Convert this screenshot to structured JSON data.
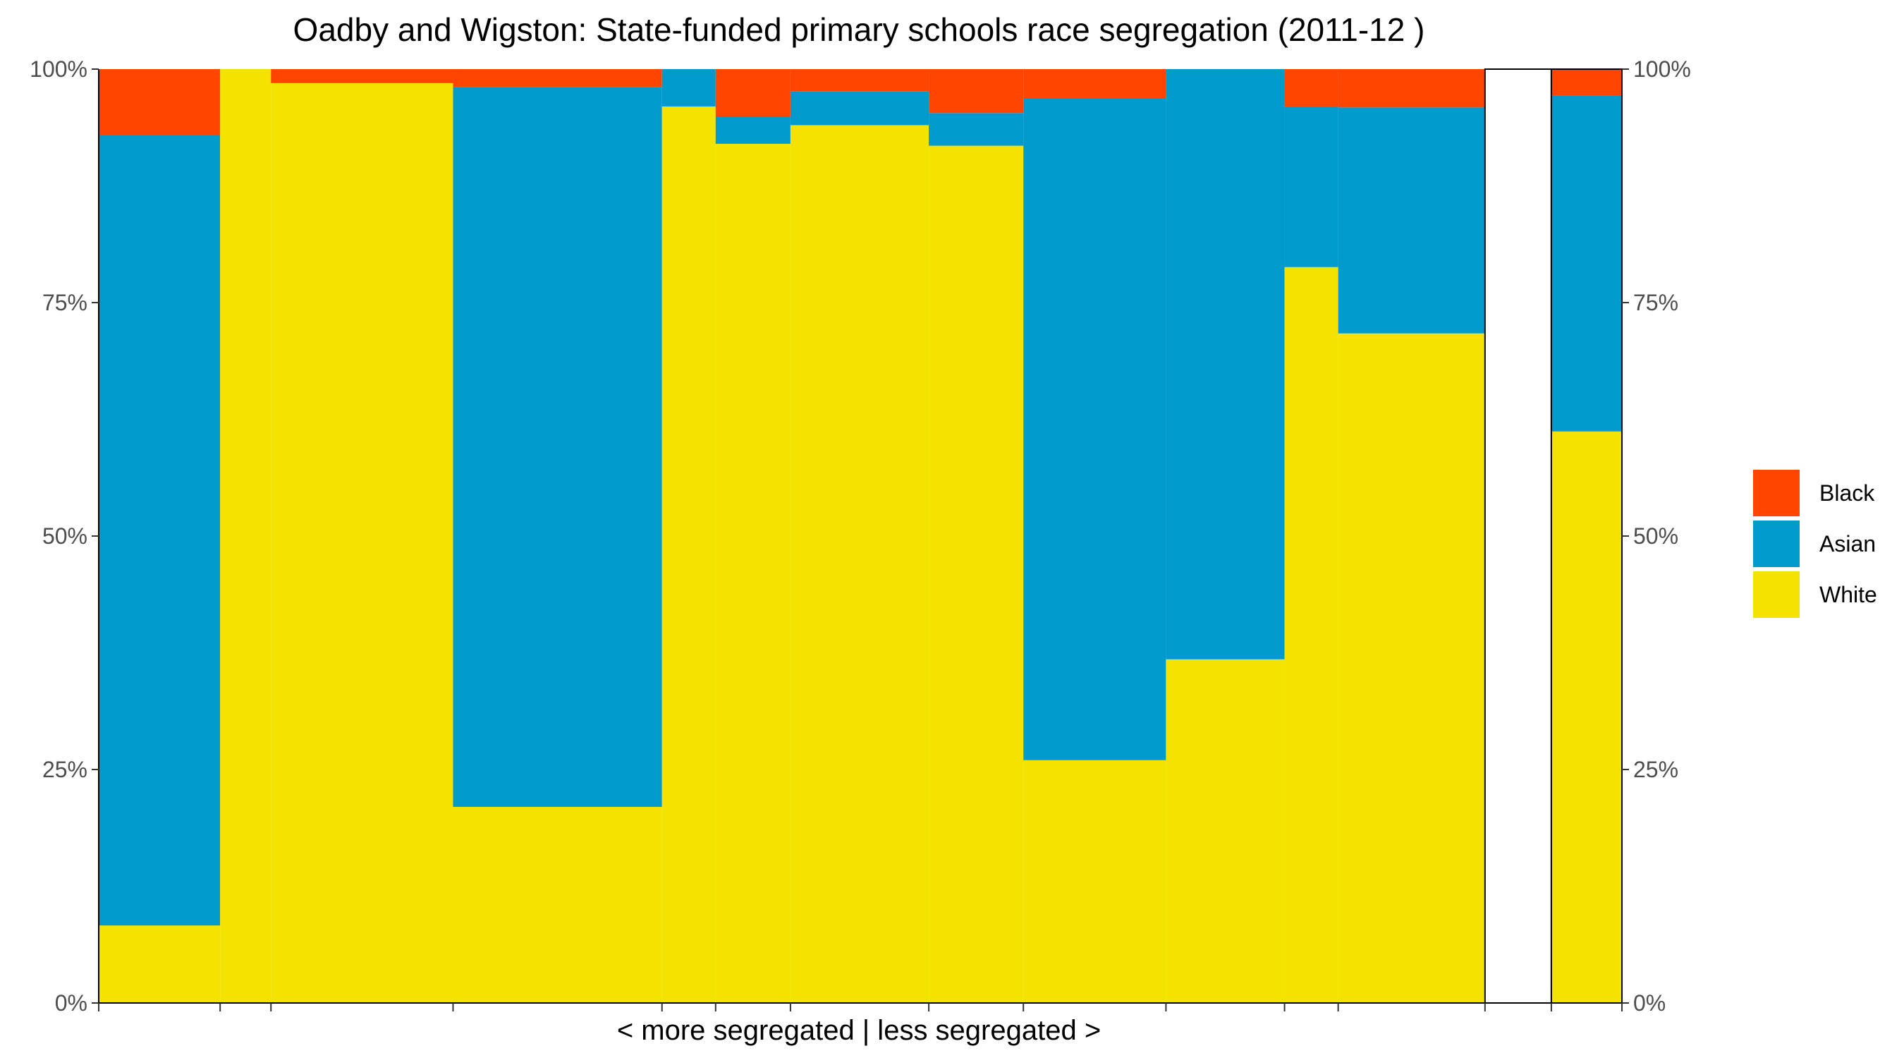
{
  "chart_data": {
    "type": "bar",
    "stacked": true,
    "variable_width": true,
    "title": "Oadby and Wigston: State-funded primary schools race segregation (2011-12 )",
    "xlabel": "< more segregated | less segregated >",
    "ylabel": "",
    "ylim": [
      0,
      1
    ],
    "y_ticks": [
      "0%",
      "25%",
      "50%",
      "75%",
      "100%"
    ],
    "grid": false,
    "legend_position": "right",
    "colors": {
      "Black": "#FF4500",
      "Asian": "#009ACD",
      "White": "#F4E300"
    },
    "legend": [
      {
        "name": "Black",
        "color": "#FF4500"
      },
      {
        "name": "Asian",
        "color": "#009ACD"
      },
      {
        "name": "White",
        "color": "#F4E300"
      }
    ],
    "series": [
      {
        "name": "White",
        "values": [
          0.083,
          1.0,
          0.985,
          0.21,
          0.96,
          0.92,
          0.94,
          0.918,
          0.26,
          0.368,
          0.788,
          0.717,
          null,
          0.612
        ]
      },
      {
        "name": "Asian",
        "values": [
          0.846,
          0.0,
          0.0,
          0.771,
          0.04,
          0.029,
          0.036,
          0.035,
          0.709,
          0.632,
          0.172,
          0.242,
          null,
          0.36
        ]
      },
      {
        "name": "Black",
        "values": [
          0.071,
          0.0,
          0.015,
          0.019,
          0.0,
          0.051,
          0.024,
          0.047,
          0.031,
          0.0,
          0.04,
          0.041,
          null,
          0.028
        ]
      }
    ],
    "widths": [
      172,
      72,
      258,
      296,
      76,
      106,
      196,
      134,
      202,
      168,
      76,
      208,
      94,
      100
    ],
    "bordered": [
      false,
      false,
      false,
      false,
      false,
      false,
      false,
      false,
      false,
      false,
      false,
      false,
      true,
      true
    ]
  }
}
